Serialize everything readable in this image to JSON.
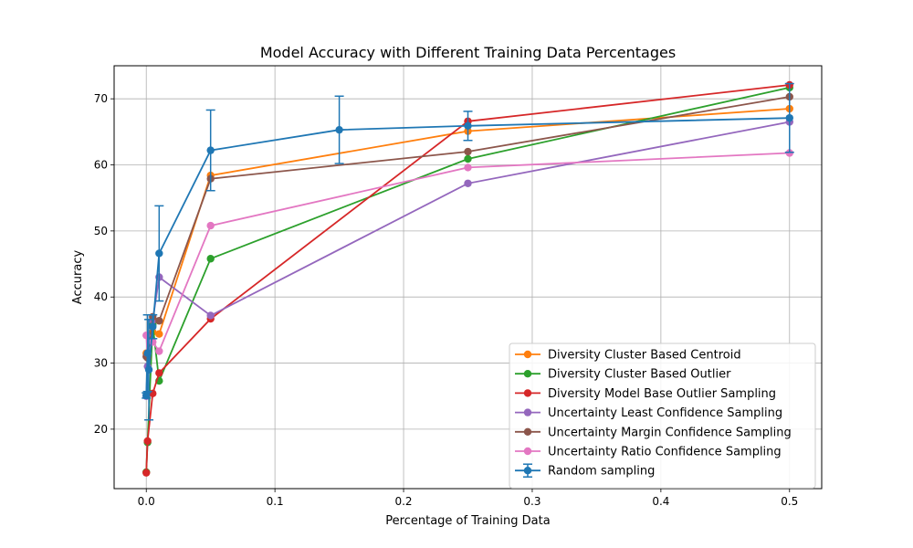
{
  "chart_data": {
    "type": "line",
    "title": "Model Accuracy with Different Training Data Percentages",
    "xlabel": "Percentage of Training Data",
    "ylabel": "Accuracy",
    "xlim": [
      -0.025,
      0.525
    ],
    "ylim": [
      11,
      75
    ],
    "xticks": [
      0.0,
      0.1,
      0.2,
      0.3,
      0.4,
      0.5
    ],
    "xtick_labels": [
      "0.0",
      "0.1",
      "0.2",
      "0.3",
      "0.4",
      "0.5"
    ],
    "yticks": [
      20,
      30,
      40,
      50,
      60,
      70
    ],
    "ytick_labels": [
      "20",
      "30",
      "40",
      "50",
      "60",
      "70"
    ],
    "grid": true,
    "legend_position": "lower-right",
    "series": [
      {
        "name": "Diversity Cluster Based Centroid",
        "color": "#ff7f0e",
        "x": [
          0.0,
          0.001,
          0.005,
          0.01,
          0.05,
          0.25,
          0.5
        ],
        "y": [
          31.5,
          31.0,
          34.7,
          34.4,
          58.4,
          65.1,
          68.5
        ]
      },
      {
        "name": "Diversity Cluster Based Outlier",
        "color": "#2ca02c",
        "x": [
          0.0,
          0.001,
          0.005,
          0.01,
          0.05,
          0.25,
          0.5
        ],
        "y": [
          13.5,
          18.0,
          35.8,
          27.3,
          45.8,
          60.9,
          71.7
        ]
      },
      {
        "name": "Diversity Model Base Outlier Sampling",
        "color": "#d62728",
        "x": [
          0.0,
          0.001,
          0.005,
          0.01,
          0.05,
          0.25,
          0.5
        ],
        "y": [
          13.4,
          18.2,
          25.4,
          28.5,
          36.7,
          66.6,
          72.1
        ]
      },
      {
        "name": "Uncertainty Least Confidence Sampling",
        "color": "#9467bd",
        "x": [
          0.0,
          0.001,
          0.005,
          0.01,
          0.05,
          0.25,
          0.5
        ],
        "y": [
          25.0,
          29.5,
          36.5,
          43.0,
          37.2,
          57.2,
          66.5
        ]
      },
      {
        "name": "Uncertainty Margin Confidence Sampling",
        "color": "#8c564b",
        "x": [
          0.0,
          0.001,
          0.005,
          0.01,
          0.05,
          0.25,
          0.5
        ],
        "y": [
          31.0,
          30.8,
          37.0,
          36.4,
          57.9,
          62.0,
          70.3
        ]
      },
      {
        "name": "Uncertainty Ratio Confidence Sampling",
        "color": "#e377c2",
        "x": [
          0.0,
          0.001,
          0.005,
          0.01,
          0.05,
          0.25,
          0.5
        ],
        "y": [
          34.2,
          31.5,
          33.2,
          31.8,
          50.8,
          59.6,
          61.8
        ]
      },
      {
        "name": "Random sampling",
        "color": "#1f77b4",
        "errorbars": true,
        "x": [
          0.0,
          0.001,
          0.002,
          0.005,
          0.01,
          0.05,
          0.15,
          0.25,
          0.5
        ],
        "y": [
          25.1,
          31.5,
          29.0,
          35.5,
          46.6,
          62.2,
          65.3,
          65.9,
          67.1
        ],
        "yerr": [
          0.4,
          5.8,
          7.6,
          1.8,
          7.2,
          6.1,
          5.1,
          2.2,
          5.2
        ]
      }
    ]
  }
}
